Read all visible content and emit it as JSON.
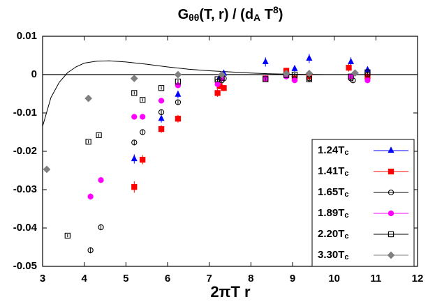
{
  "chart_data": {
    "type": "scatter",
    "title": [
      "G",
      "θθ",
      "(T, r) / (d",
      "A",
      " T",
      "8",
      ")"
    ],
    "x_label": "2πT r",
    "legend_subscript": "c",
    "xlim": [
      3,
      12
    ],
    "xticks": [
      3,
      4,
      5,
      6,
      7,
      8,
      9,
      10,
      11,
      12
    ],
    "ylim": [
      -0.05,
      0.01
    ],
    "yticks": [
      0.01,
      0,
      -0.01,
      -0.02,
      -0.03,
      -0.04,
      -0.05
    ],
    "zero_line": true,
    "legend": "lower right",
    "curve": {
      "color": "#000000",
      "x": [
        3,
        3.2,
        3.4,
        3.6,
        3.8,
        4.0,
        4.3,
        4.6,
        5.0,
        5.5,
        6.0,
        6.5,
        7.0,
        7.5,
        8.0,
        8.5,
        9.0,
        9.8
      ],
      "values": [
        -0.0135,
        -0.006,
        -0.002,
        0.0005,
        0.002,
        0.003,
        0.0035,
        0.0036,
        0.0033,
        0.0027,
        0.002,
        0.0014,
        0.001,
        0.0007,
        0.0004,
        0.0002,
        0.0001,
        0
      ]
    },
    "series": [
      {
        "name": "1.24T",
        "color": "#0000ff",
        "marker": "triangle",
        "x": [
          5.2,
          5.85,
          6.25,
          7.25,
          7.35,
          8.35,
          8.85,
          9.05,
          9.4,
          10.4,
          10.8
        ],
        "values": [
          -0.022,
          -0.0115,
          -0.0052,
          -0.0008,
          0.0003,
          0.0033,
          0.0005,
          0.0015,
          0.0042,
          0.0033,
          0.0012
        ],
        "errors": [
          0.0012,
          0.001,
          0.001,
          0.0008,
          0.0008,
          0.0012,
          0.0008,
          0.0008,
          0.0012,
          0.0012,
          0.0008
        ]
      },
      {
        "name": "1.41T",
        "color": "#ff0000",
        "marker": "square",
        "x": [
          5.2,
          5.4,
          5.85,
          6.25,
          7.2,
          7.25,
          7.35,
          8.35,
          8.85,
          9.05,
          9.4,
          10.35,
          10.8
        ],
        "values": [
          -0.0293,
          -0.0222,
          -0.0142,
          -0.0115,
          -0.0048,
          -0.003,
          -0.0035,
          -0.001,
          0.001,
          -0.001,
          -0.0005,
          0.0018,
          -0.0005
        ],
        "errors": [
          0.0015,
          0.0012,
          0.001,
          0.001,
          0.001,
          0.0008,
          0.0008,
          0.0008,
          0.0008,
          0.0008,
          0.0008,
          0.001,
          0.0008
        ]
      },
      {
        "name": "1.65T",
        "color": "#000000",
        "marker": "open-circle",
        "x": [
          4.15,
          4.4,
          5.2,
          5.4,
          5.85,
          6.25,
          7.2,
          7.3,
          7.35,
          8.35,
          8.85,
          9.05,
          9.4,
          10.4,
          10.45,
          10.8
        ],
        "values": [
          -0.0458,
          -0.0398,
          -0.0177,
          -0.015,
          -0.0098,
          -0.0072,
          -0.0018,
          -0.0015,
          -0.001,
          -0.001,
          0.0002,
          -0.0005,
          -0.001,
          -0.001,
          -0.0015,
          0
        ],
        "errors": [
          0.0008,
          0.0008,
          0.0006,
          0.0006,
          0.0006,
          0.0006,
          0.0005,
          0.0005,
          0.0005,
          0.0005,
          0.0005,
          0.0005,
          0.0005,
          0.0005,
          0.0005,
          0.0005
        ]
      },
      {
        "name": "1.89T",
        "color": "#ff00ff",
        "marker": "circle",
        "x": [
          4.15,
          4.4,
          5.2,
          5.4,
          5.85,
          6.25,
          7.2,
          7.3,
          8.35,
          8.85,
          9.05,
          10.4,
          10.8
        ],
        "values": [
          -0.0318,
          -0.0275,
          -0.011,
          -0.011,
          -0.0068,
          -0.0028,
          -0.0025,
          -0.001,
          -0.001,
          -0.0005,
          -0.0015,
          -0.0005,
          -0.0015
        ],
        "errors": [
          0.0008,
          0.0008,
          0.0006,
          0.0006,
          0.0006,
          0.0006,
          0.0005,
          0.0005,
          0.0005,
          0.0005,
          0.0005,
          0.0005,
          0.0005
        ]
      },
      {
        "name": "2.20T",
        "color": "#000000",
        "marker": "open-square",
        "x": [
          3.6,
          4.1,
          4.35,
          5.2,
          5.4,
          5.85,
          6.25,
          7.2,
          7.3,
          8.35,
          8.85,
          9.05,
          9.4,
          10.4,
          10.8
        ],
        "values": [
          -0.042,
          -0.0175,
          -0.0158,
          -0.0048,
          -0.0066,
          -0.0035,
          -0.0018,
          -0.0012,
          -0.0008,
          -0.0012,
          -0.0001,
          0,
          -0.0012,
          -0.0005,
          0.0006
        ],
        "errors": [
          0.0004,
          0.0004,
          0.0004,
          0.0004,
          0.0004,
          0.0004,
          0.0004,
          0.0004,
          0.0004,
          0.0004,
          0.0004,
          0.0004,
          0.0004,
          0.0004,
          0.0004
        ]
      },
      {
        "name": "3.30T",
        "color": "#808080",
        "marker": "diamond",
        "x": [
          3.1,
          4.1,
          5.2,
          6.25,
          7.3,
          8.85,
          9.4,
          10.5
        ],
        "values": [
          -0.0247,
          -0.0062,
          -0.001,
          0,
          0,
          0.0003,
          0.0003,
          0.0004
        ],
        "errors": [
          0.0003,
          0.0003,
          0.0003,
          0.0003,
          0.0003,
          0.0003,
          0.0003,
          0.0003
        ]
      }
    ]
  }
}
